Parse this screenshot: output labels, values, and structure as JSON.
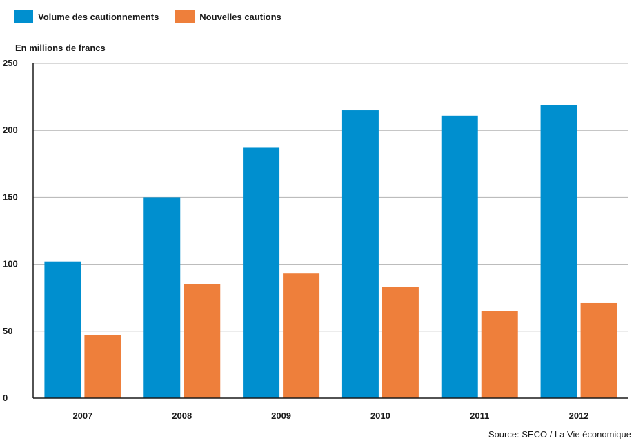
{
  "legend": [
    {
      "label": "Volume des cautionnements",
      "color": "#008fcf"
    },
    {
      "label": "Nouvelles cautions",
      "color": "#ee7f3b"
    }
  ],
  "unit_label": "En millions de francs",
  "source": "Source: SECO / La Vie économique",
  "chart_data": {
    "type": "bar",
    "categories": [
      "2007",
      "2008",
      "2009",
      "2010",
      "2011",
      "2012"
    ],
    "series": [
      {
        "name": "Volume des cautionnements",
        "color": "#008fcf",
        "values": [
          102,
          150,
          187,
          215,
          211,
          219
        ]
      },
      {
        "name": "Nouvelles cautions",
        "color": "#ee7f3b",
        "values": [
          47,
          85,
          93,
          83,
          65,
          71
        ]
      }
    ],
    "ylabel": "En millions de francs",
    "xlabel": "",
    "ylim": [
      0,
      250
    ],
    "yticks": [
      0,
      50,
      100,
      150,
      200,
      250
    ],
    "grid": true,
    "legend_position": "top-left"
  }
}
